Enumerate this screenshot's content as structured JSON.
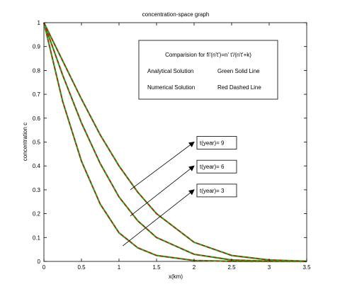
{
  "chart_data": {
    "type": "line",
    "title": "concentration-space graph",
    "xlabel": "x(km)",
    "ylabel": "concentration c",
    "xlim": [
      0,
      3.5
    ],
    "ylim": [
      0,
      1
    ],
    "xticks": [
      "0",
      "0.5",
      "1",
      "1.5",
      "2",
      "2.5",
      "3",
      "3.5"
    ],
    "yticks": [
      "0",
      "0.1",
      "0.2",
      "0.3",
      "0.4",
      "0.5",
      "0.6",
      "0.7",
      "0.8",
      "0.9",
      "1"
    ],
    "grid": false,
    "colors": {
      "analytical": "#22aa22",
      "numerical": "#cc1111"
    },
    "series": [
      {
        "name": "t(year)= 3",
        "x": [
          0,
          0.25,
          0.5,
          0.75,
          1.0,
          1.25,
          1.5,
          2.0,
          2.5,
          3.0,
          3.5
        ],
        "y": [
          1.0,
          0.67,
          0.42,
          0.24,
          0.12,
          0.057,
          0.025,
          0.004,
          0.0004,
          0.0,
          0.0
        ]
      },
      {
        "name": "t(year)= 6",
        "x": [
          0,
          0.25,
          0.5,
          0.75,
          1.0,
          1.25,
          1.5,
          2.0,
          2.5,
          3.0,
          3.5
        ],
        "y": [
          1.0,
          0.78,
          0.58,
          0.41,
          0.27,
          0.17,
          0.1,
          0.03,
          0.006,
          0.001,
          0.0
        ]
      },
      {
        "name": "t(year)= 9",
        "x": [
          0,
          0.25,
          0.5,
          0.75,
          1.0,
          1.25,
          1.5,
          2.0,
          2.5,
          3.0,
          3.5
        ],
        "y": [
          1.0,
          0.84,
          0.68,
          0.53,
          0.4,
          0.29,
          0.2,
          0.08,
          0.025,
          0.006,
          0.001
        ]
      }
    ],
    "legend": {
      "heading": "Comparision for fi'(n't')=n' t'/(n't'+k)",
      "rows": [
        {
          "label": "Analytical Solution",
          "style": "Green Solid Line"
        },
        {
          "label": "Numerical Solution",
          "style": "Red Dashed Line"
        }
      ]
    },
    "annotations": [
      {
        "text": "t(year)= 9",
        "from": [
          1.15,
          0.3
        ],
        "to": [
          2.0,
          0.5
        ]
      },
      {
        "text": "t(year)= 6",
        "from": [
          1.15,
          0.19
        ],
        "to": [
          2.0,
          0.4
        ]
      },
      {
        "text": "t(year)= 3",
        "from": [
          1.05,
          0.065
        ],
        "to": [
          2.0,
          0.3
        ]
      }
    ]
  }
}
